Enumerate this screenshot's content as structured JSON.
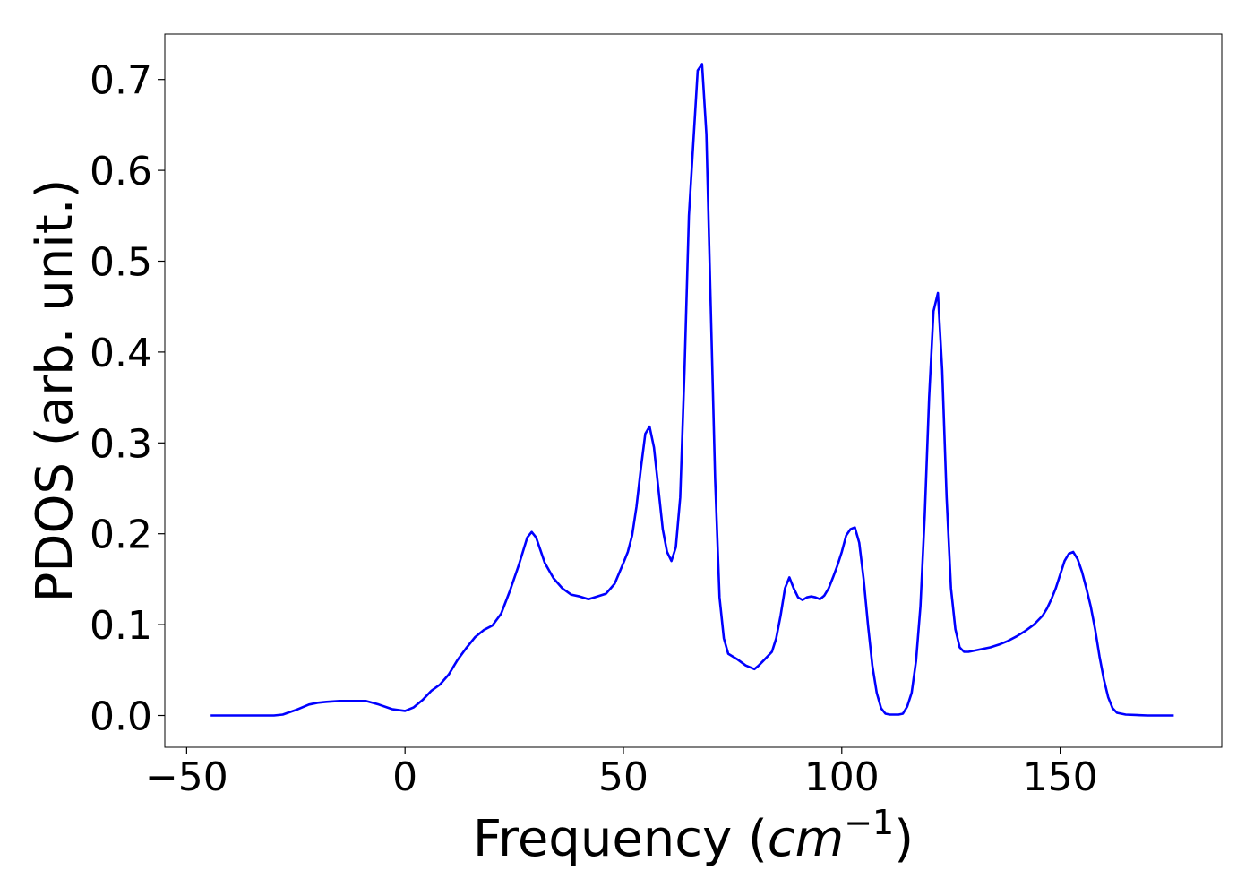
{
  "chart_data": {
    "type": "line",
    "title": "",
    "xlabel_text": "Frequency (",
    "xlabel_math": "cm",
    "xlabel_sup": "−1",
    "xlabel_close": ")",
    "ylabel": "PDOS (arb. unit.)",
    "xlim": [
      -55,
      187
    ],
    "ylim": [
      -0.035,
      0.75
    ],
    "xticks": [
      -50,
      0,
      50,
      100,
      150
    ],
    "xtick_labels": [
      "−50",
      "0",
      "50",
      "100",
      "150"
    ],
    "yticks": [
      0.0,
      0.1,
      0.2,
      0.3,
      0.4,
      0.5,
      0.6,
      0.7
    ],
    "ytick_labels": [
      "0.0",
      "0.1",
      "0.2",
      "0.3",
      "0.4",
      "0.5",
      "0.6",
      "0.7"
    ],
    "grid": false,
    "line_color": "#0000ff",
    "series": [
      {
        "x": [
          -44.5,
          -40,
          -35,
          -30,
          -28,
          -25,
          -22,
          -20,
          -18,
          -15,
          -12,
          -9,
          -6,
          -3,
          0,
          2,
          4,
          6,
          8,
          10,
          12,
          14,
          16,
          18,
          20,
          22,
          24,
          26,
          28,
          29,
          30,
          32,
          34,
          36,
          38,
          40,
          42,
          44,
          46,
          48,
          50,
          51,
          52,
          53,
          54,
          55,
          56,
          57,
          58,
          59,
          60,
          61,
          62,
          63,
          64,
          65,
          66,
          67,
          68,
          69,
          70,
          71,
          72,
          73,
          74,
          75,
          76,
          78,
          80,
          81,
          82,
          84,
          85,
          86,
          87,
          88,
          89,
          90,
          91,
          92,
          93,
          94,
          95,
          96,
          97,
          98,
          99,
          100,
          101,
          102,
          103,
          104,
          105,
          106,
          107,
          108,
          109,
          110,
          111,
          112,
          113,
          114,
          115,
          116,
          117,
          118,
          119,
          120,
          121,
          122,
          123,
          124,
          125,
          126,
          127,
          128,
          129,
          130,
          132,
          134,
          136,
          138,
          140,
          142,
          144,
          146,
          147,
          148,
          149,
          150,
          151,
          152,
          153,
          154,
          155,
          156,
          157,
          158,
          159,
          160,
          161,
          162,
          163,
          165,
          170,
          176
        ],
        "y": [
          0.0,
          0.0,
          0.0,
          0.0,
          0.001,
          0.006,
          0.012,
          0.014,
          0.015,
          0.016,
          0.016,
          0.016,
          0.012,
          0.007,
          0.005,
          0.009,
          0.017,
          0.027,
          0.034,
          0.045,
          0.061,
          0.074,
          0.086,
          0.094,
          0.099,
          0.112,
          0.137,
          0.165,
          0.196,
          0.202,
          0.196,
          0.168,
          0.151,
          0.14,
          0.133,
          0.131,
          0.128,
          0.131,
          0.134,
          0.145,
          0.168,
          0.18,
          0.198,
          0.23,
          0.272,
          0.31,
          0.318,
          0.295,
          0.25,
          0.205,
          0.18,
          0.17,
          0.185,
          0.24,
          0.38,
          0.55,
          0.63,
          0.71,
          0.717,
          0.64,
          0.45,
          0.26,
          0.13,
          0.085,
          0.068,
          0.065,
          0.062,
          0.055,
          0.051,
          0.055,
          0.06,
          0.07,
          0.085,
          0.11,
          0.14,
          0.152,
          0.14,
          0.13,
          0.127,
          0.13,
          0.131,
          0.13,
          0.128,
          0.132,
          0.14,
          0.152,
          0.165,
          0.18,
          0.198,
          0.205,
          0.207,
          0.19,
          0.15,
          0.1,
          0.055,
          0.025,
          0.008,
          0.002,
          0.001,
          0.001,
          0.001,
          0.002,
          0.01,
          0.025,
          0.06,
          0.12,
          0.22,
          0.35,
          0.445,
          0.465,
          0.38,
          0.24,
          0.14,
          0.095,
          0.075,
          0.07,
          0.07,
          0.071,
          0.073,
          0.075,
          0.078,
          0.082,
          0.087,
          0.093,
          0.1,
          0.11,
          0.118,
          0.128,
          0.14,
          0.155,
          0.17,
          0.178,
          0.18,
          0.172,
          0.158,
          0.14,
          0.12,
          0.095,
          0.065,
          0.04,
          0.02,
          0.008,
          0.003,
          0.001,
          0.0,
          0.0
        ]
      }
    ]
  }
}
